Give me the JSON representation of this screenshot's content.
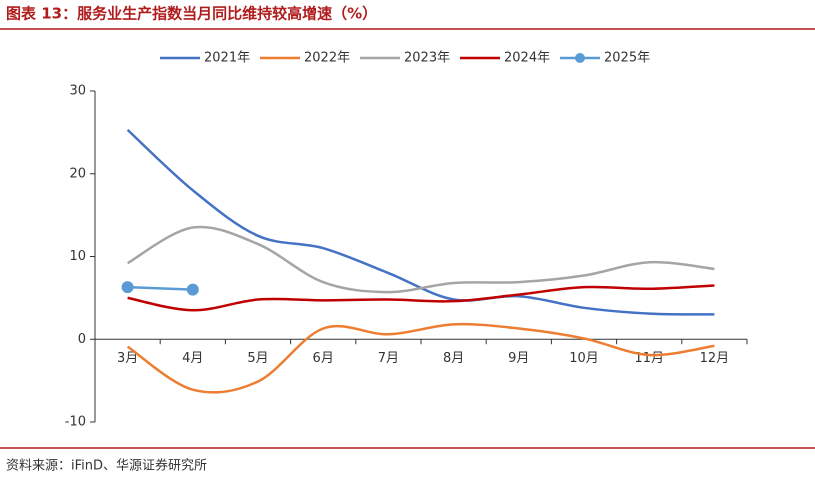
{
  "chart_data": {
    "type": "line",
    "title": "图表 13：服务业生产指数当月同比维持较高增速（%）",
    "source": "资料来源：iFinD、华源证券研究所",
    "categories": [
      "3月",
      "4月",
      "5月",
      "6月",
      "7月",
      "8月",
      "9月",
      "10月",
      "11月",
      "12月"
    ],
    "ylim": [
      -10,
      30
    ],
    "yticks": [
      -10,
      0,
      10,
      20,
      30
    ],
    "smooth": true,
    "series": [
      {
        "name": "2021年",
        "color": "#4472c4",
        "values": [
          25.3,
          18,
          12.5,
          11,
          8,
          4.8,
          5.2,
          3.8,
          3.1,
          3.0
        ]
      },
      {
        "name": "2022年",
        "color": "#ed7d31",
        "values": [
          -0.9,
          -6.1,
          -5.1,
          1.3,
          0.6,
          1.8,
          1.3,
          0.1,
          -1.9,
          -0.8
        ]
      },
      {
        "name": "2023年",
        "color": "#a5a5a5",
        "values": [
          9.2,
          13.5,
          11.5,
          6.9,
          5.7,
          6.8,
          6.9,
          7.7,
          9.3,
          8.5
        ]
      },
      {
        "name": "2024年",
        "color": "#c00000",
        "values": [
          5.0,
          3.5,
          4.8,
          4.7,
          4.8,
          4.6,
          5.4,
          6.3,
          6.1,
          6.5
        ]
      },
      {
        "name": "2025年",
        "color": "#5b9bd5",
        "markers": true,
        "values": [
          6.3,
          6.0,
          null,
          null,
          null,
          null,
          null,
          null,
          null,
          null
        ]
      }
    ]
  }
}
